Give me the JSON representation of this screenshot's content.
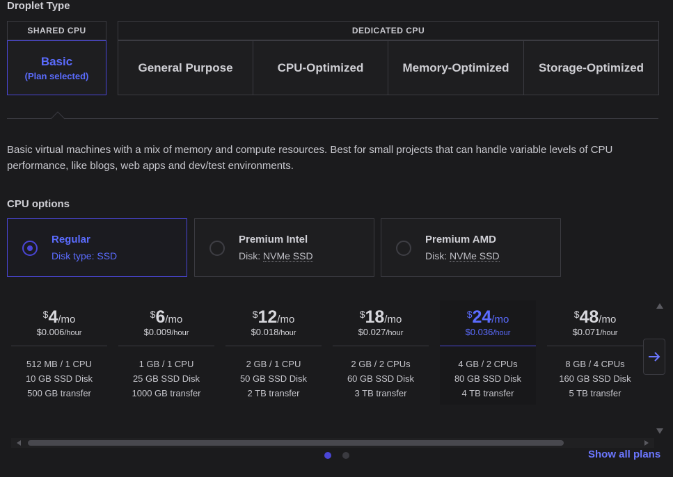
{
  "heading": "Droplet Type",
  "groups": {
    "shared": "SHARED CPU",
    "dedicated": "DEDICATED CPU"
  },
  "tabs": [
    {
      "label": "Basic",
      "sub": "(Plan selected)"
    },
    {
      "label": "General Purpose"
    },
    {
      "label": "CPU-Optimized"
    },
    {
      "label": "Memory-Optimized"
    },
    {
      "label": "Storage-Optimized"
    }
  ],
  "description": "Basic virtual machines with a mix of memory and compute resources. Best for small projects that can handle variable levels of CPU performance, like blogs, web apps and dev/test environments.",
  "cpu_options": {
    "title": "CPU options",
    "items": [
      {
        "name": "Regular",
        "disk_label": "Disk type: SSD",
        "selected": true
      },
      {
        "name": "Premium Intel",
        "disk_label": "Disk:",
        "disk_value": "NVMe SSD"
      },
      {
        "name": "Premium AMD",
        "disk_label": "Disk:",
        "disk_value": "NVMe SSD"
      }
    ]
  },
  "plans": [
    {
      "currency": "$",
      "amount": "4",
      "unit": "/mo",
      "hourly": "$0.006",
      "hourly_unit": "/hour",
      "memory": "512 MB",
      "cpu": "1 CPU",
      "disk": "10 GB SSD Disk",
      "transfer": "500 GB transfer"
    },
    {
      "currency": "$",
      "amount": "6",
      "unit": "/mo",
      "hourly": "$0.009",
      "hourly_unit": "/hour",
      "memory": "1 GB",
      "cpu": "1 CPU",
      "disk": "25 GB SSD Disk",
      "transfer": "1000 GB transfer"
    },
    {
      "currency": "$",
      "amount": "12",
      "unit": "/mo",
      "hourly": "$0.018",
      "hourly_unit": "/hour",
      "memory": "2 GB",
      "cpu": "1 CPU",
      "disk": "50 GB SSD Disk",
      "transfer": "2 TB transfer"
    },
    {
      "currency": "$",
      "amount": "18",
      "unit": "/mo",
      "hourly": "$0.027",
      "hourly_unit": "/hour",
      "memory": "2 GB",
      "cpu": "2 CPUs",
      "disk": "60 GB SSD Disk",
      "transfer": "3 TB transfer"
    },
    {
      "currency": "$",
      "amount": "24",
      "unit": "/mo",
      "hourly": "$0.036",
      "hourly_unit": "/hour",
      "memory": "4 GB",
      "cpu": "2 CPUs",
      "disk": "80 GB SSD Disk",
      "transfer": "4 TB transfer",
      "selected": true
    },
    {
      "currency": "$",
      "amount": "48",
      "unit": "/mo",
      "hourly": "$0.071",
      "hourly_unit": "/hour",
      "memory": "8 GB",
      "cpu": "4 CPUs",
      "disk": "160 GB SSD Disk",
      "transfer": "5 TB transfer"
    }
  ],
  "spec_separator": " / ",
  "icons": {
    "next": "arrow-right-icon"
  },
  "show_all": "Show all plans",
  "colors": {
    "accent": "#5b6cff",
    "selected_border": "#4a46d6",
    "background": "#1b1b1d"
  }
}
